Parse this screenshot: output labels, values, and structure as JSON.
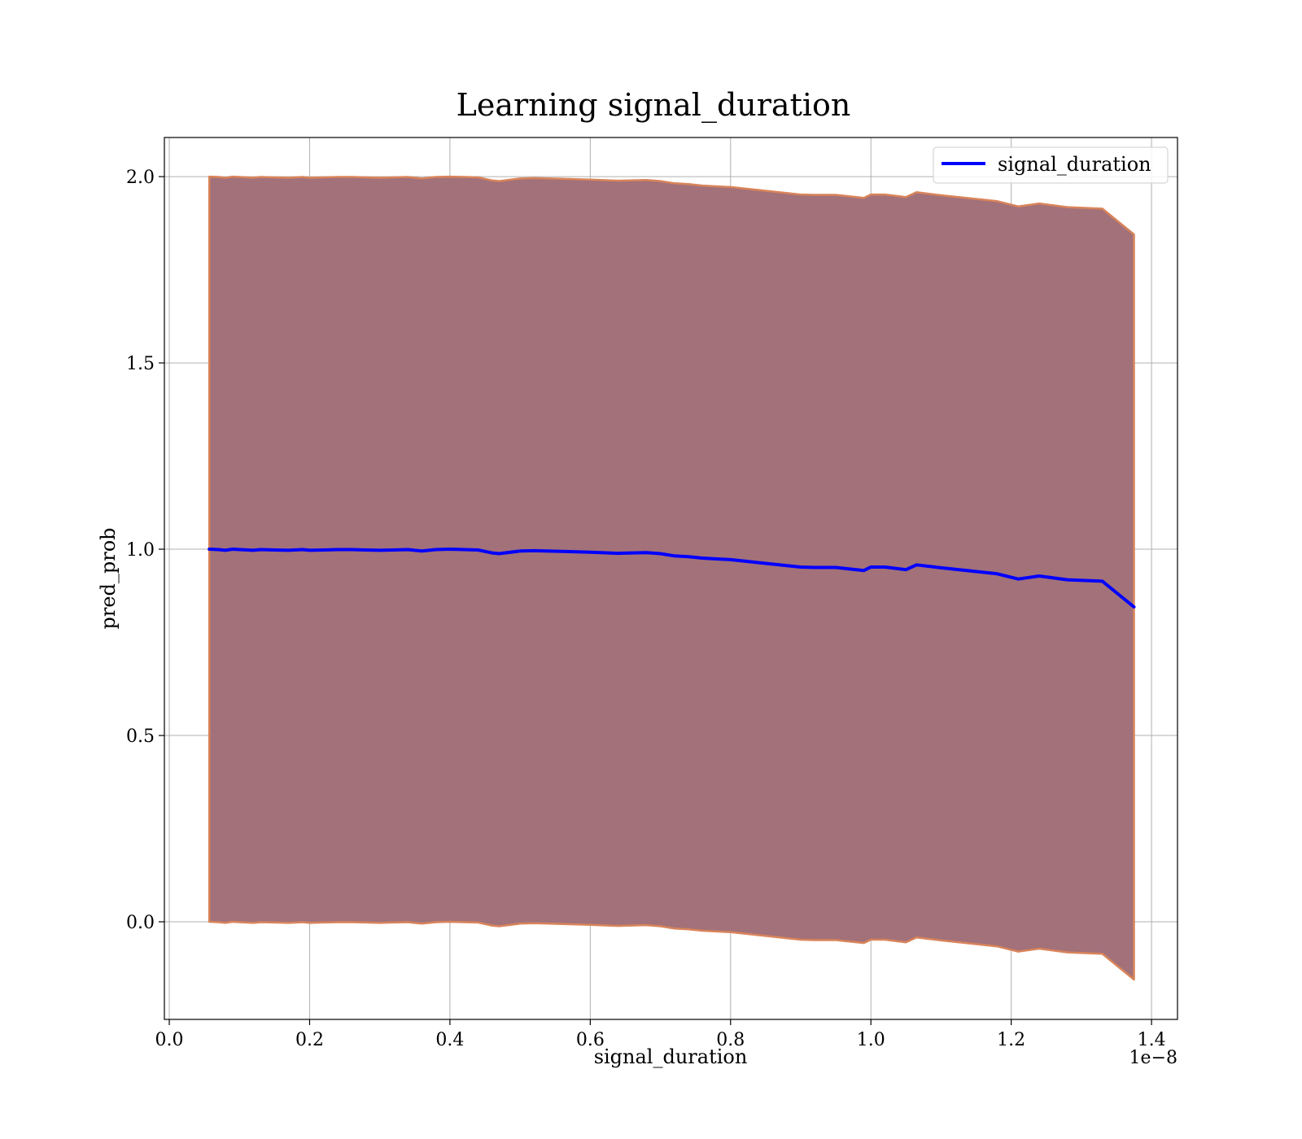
{
  "chart_data": {
    "type": "area",
    "title": "Learning signal_duration",
    "xlabel": "signal_duration",
    "ylabel": "pred_prob",
    "x_offset_label": "1e−8",
    "xlim": [
      -0.007,
      1.437
    ],
    "ylim": [
      -0.262,
      2.105
    ],
    "xticks": [
      0.0,
      0.2,
      0.4,
      0.6,
      0.8,
      1.0,
      1.2,
      1.4
    ],
    "xtick_labels": [
      "0.0",
      "0.2",
      "0.4",
      "0.6",
      "0.8",
      "1.0",
      "1.2",
      "1.4"
    ],
    "yticks": [
      0.0,
      0.5,
      1.0,
      1.5,
      2.0
    ],
    "ytick_labels": [
      "0.0",
      "0.5",
      "1.0",
      "1.5",
      "2.0"
    ],
    "grid": true,
    "legend_position": "top-right",
    "legend": [
      "signal_duration"
    ],
    "colors": {
      "line": "#0000ff",
      "band_fill": "#a2717a",
      "band_edge": "#d9845a",
      "grid": "#b0b0b0"
    },
    "series": [
      {
        "name": "signal_duration",
        "x": [
          0.057,
          0.07,
          0.08,
          0.09,
          0.1,
          0.12,
          0.13,
          0.15,
          0.17,
          0.19,
          0.2,
          0.22,
          0.24,
          0.26,
          0.28,
          0.3,
          0.32,
          0.34,
          0.36,
          0.38,
          0.4,
          0.42,
          0.44,
          0.46,
          0.47,
          0.5,
          0.52,
          0.56,
          0.6,
          0.64,
          0.68,
          0.7,
          0.72,
          0.74,
          0.76,
          0.8,
          0.85,
          0.9,
          0.92,
          0.95,
          0.99,
          1.0,
          1.02,
          1.05,
          1.065,
          1.1,
          1.18,
          1.21,
          1.24,
          1.28,
          1.33,
          1.375
        ],
        "y": [
          1.0,
          0.999,
          0.997,
          1.0,
          0.999,
          0.997,
          0.999,
          0.998,
          0.997,
          0.999,
          0.997,
          0.998,
          0.999,
          0.999,
          0.998,
          0.997,
          0.998,
          0.999,
          0.995,
          0.999,
          1.0,
          0.999,
          0.998,
          0.99,
          0.988,
          0.995,
          0.996,
          0.994,
          0.992,
          0.989,
          0.991,
          0.988,
          0.982,
          0.98,
          0.976,
          0.972,
          0.962,
          0.952,
          0.951,
          0.951,
          0.943,
          0.952,
          0.952,
          0.945,
          0.958,
          0.95,
          0.934,
          0.92,
          0.928,
          0.918,
          0.914,
          0.845
        ],
        "upper": [
          2.0,
          1.999,
          1.997,
          2.0,
          1.999,
          1.997,
          1.999,
          1.998,
          1.997,
          1.999,
          1.997,
          1.998,
          1.999,
          1.999,
          1.998,
          1.997,
          1.998,
          1.999,
          1.995,
          1.999,
          2.0,
          1.999,
          1.998,
          1.99,
          1.988,
          1.995,
          1.996,
          1.994,
          1.992,
          1.989,
          1.991,
          1.988,
          1.982,
          1.98,
          1.976,
          1.972,
          1.962,
          1.952,
          1.951,
          1.951,
          1.943,
          1.952,
          1.952,
          1.945,
          1.958,
          1.95,
          1.934,
          1.92,
          1.928,
          1.918,
          1.914,
          1.845
        ],
        "lower": [
          0.0,
          -0.001,
          -0.003,
          0.0,
          -0.001,
          -0.003,
          -0.001,
          -0.002,
          -0.003,
          -0.001,
          -0.003,
          -0.002,
          -0.001,
          -0.001,
          -0.002,
          -0.003,
          -0.002,
          -0.001,
          -0.005,
          -0.001,
          0.0,
          -0.001,
          -0.002,
          -0.01,
          -0.012,
          -0.005,
          -0.004,
          -0.006,
          -0.008,
          -0.011,
          -0.009,
          -0.012,
          -0.018,
          -0.02,
          -0.024,
          -0.028,
          -0.038,
          -0.048,
          -0.049,
          -0.049,
          -0.057,
          -0.048,
          -0.048,
          -0.055,
          -0.042,
          -0.05,
          -0.066,
          -0.08,
          -0.072,
          -0.082,
          -0.086,
          -0.155
        ]
      }
    ]
  }
}
